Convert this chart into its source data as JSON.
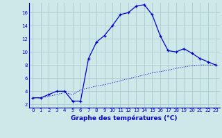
{
  "xlabel": "Graphe des températures (°C)",
  "background_color": "#cce8e8",
  "grid_color": "#aacccc",
  "line_color": "#0000cc",
  "xlim": [
    -0.5,
    23.5
  ],
  "ylim": [
    1.5,
    17.5
  ],
  "yticks": [
    2,
    4,
    6,
    8,
    10,
    12,
    14,
    16
  ],
  "xticks": [
    0,
    1,
    2,
    3,
    4,
    5,
    6,
    7,
    8,
    9,
    10,
    11,
    12,
    13,
    14,
    15,
    16,
    17,
    18,
    19,
    20,
    21,
    22,
    23
  ],
  "line1_x": [
    0,
    1,
    2,
    3,
    4,
    5,
    6,
    7,
    8,
    9,
    10,
    11,
    12,
    13,
    14,
    15,
    16,
    17,
    18,
    19,
    20,
    21,
    22,
    23
  ],
  "line1_y": [
    3.0,
    3.0,
    3.5,
    4.0,
    4.0,
    2.5,
    2.5,
    9.0,
    11.5,
    12.5,
    14.0,
    15.7,
    16.0,
    17.0,
    17.2,
    15.7,
    12.5,
    10.2,
    10.0,
    10.5,
    9.8,
    9.0,
    8.5,
    8.0
  ],
  "line2_x": [
    0,
    1,
    2,
    3,
    4,
    5,
    6,
    7,
    8,
    9,
    10,
    11,
    12,
    13,
    14,
    15,
    16,
    17,
    18,
    19,
    20,
    21,
    22,
    23
  ],
  "line2_y": [
    3.0,
    3.0,
    3.2,
    3.5,
    3.8,
    3.5,
    4.2,
    4.5,
    4.8,
    5.0,
    5.3,
    5.6,
    5.9,
    6.2,
    6.5,
    6.8,
    7.0,
    7.2,
    7.5,
    7.7,
    7.9,
    8.0,
    8.0,
    8.0
  ],
  "xlabel_fontsize": 6.5,
  "tick_fontsize": 5.0,
  "figsize": [
    3.2,
    2.0
  ],
  "dpi": 100
}
